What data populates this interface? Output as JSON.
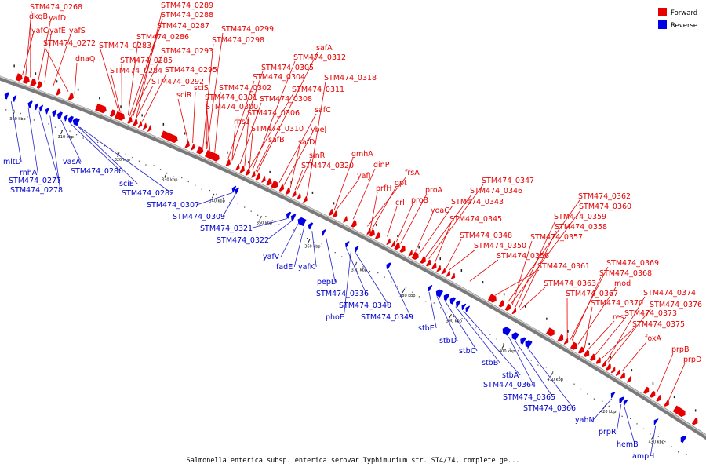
{
  "title": "Salmonella enterica subsp. enterica serovar Typhimurium str. ST4/74, complete ge...",
  "legend": [
    {
      "label": "Forward",
      "color": "#e60000"
    },
    {
      "label": "Reverse",
      "color": "#0000e6"
    }
  ],
  "colors": {
    "forward": "#e60000",
    "reverse": "#0000e6",
    "forward_line": "#e60000",
    "reverse_line": "#2222cc",
    "backbone": "#7a7a7a"
  },
  "ticks": [
    "300 kbp",
    "310 kbp",
    "320 kbp",
    "330 kbp",
    "340 kbp",
    "350 kbp",
    "360 kbp",
    "370 kbp",
    "380 kbp",
    "390 kbp",
    "400 kbp",
    "410 kbp",
    "420 kbp",
    "430 kbp"
  ],
  "forward_labels": [
    "STM474_0268",
    "dkgB",
    "yafD",
    "yafC",
    "yafE",
    "yafS",
    "STM474_0272",
    "dnaQ",
    "STM474_0289",
    "STM474_0288",
    "STM474_0287",
    "STM474_0286",
    "STM474_0283",
    "STM474_0285",
    "STM474_0293",
    "STM474_0284",
    "STM474_0295",
    "STM474_0292",
    "sciR",
    "sciS",
    "STM474_0299",
    "STM474_0298",
    "safA",
    "STM474_0312",
    "STM474_0305",
    "STM474_0304",
    "STM474_0302",
    "STM474_0301",
    "STM474_0300",
    "STM474_0311",
    "STM474_0308",
    "STM474_0318",
    "rhs1",
    "STM474_0306",
    "safC",
    "STM474_0310",
    "ybeJ",
    "safB",
    "safD",
    "sinR",
    "gmhA",
    "STM474_0320",
    "dinP",
    "yafJ",
    "frsA",
    "gpt",
    "prfH",
    "crl",
    "proA",
    "proB",
    "yoaC",
    "STM474_0347",
    "STM474_0346",
    "STM474_0343",
    "STM474_0345",
    "STM474_0348",
    "STM474_0350",
    "STM474_0356",
    "STM474_0361",
    "STM474_0362",
    "STM474_0360",
    "STM474_0359",
    "STM474_0358",
    "STM474_0357",
    "STM474_0363",
    "STM474_0369",
    "STM474_0368",
    "mod",
    "STM474_0367",
    "STM474_0370",
    "res",
    "STM474_0373",
    "STM474_0374",
    "STM474_0376",
    "STM474_0375",
    "foxA",
    "prpB",
    "prpD"
  ],
  "reverse_labels": [
    "mltD",
    "rnhA",
    "STM474_0277",
    "STM474_0278",
    "vasA",
    "STM474_0280",
    "sciE",
    "STM474_0282",
    "STM474_0307",
    "STM474_0309",
    "STM474_0321",
    "STM474_0322",
    "yafV",
    "fadE",
    "yafK",
    "pepD",
    "STM474_0336",
    "STM474_0340",
    "phoE",
    "STM474_0349",
    "stbE",
    "stbD",
    "stbC",
    "stbB",
    "stbA",
    "STM474_0364",
    "STM474_0365",
    "STM474_0366",
    "yahN",
    "prpR",
    "hemB",
    "ampH"
  ]
}
